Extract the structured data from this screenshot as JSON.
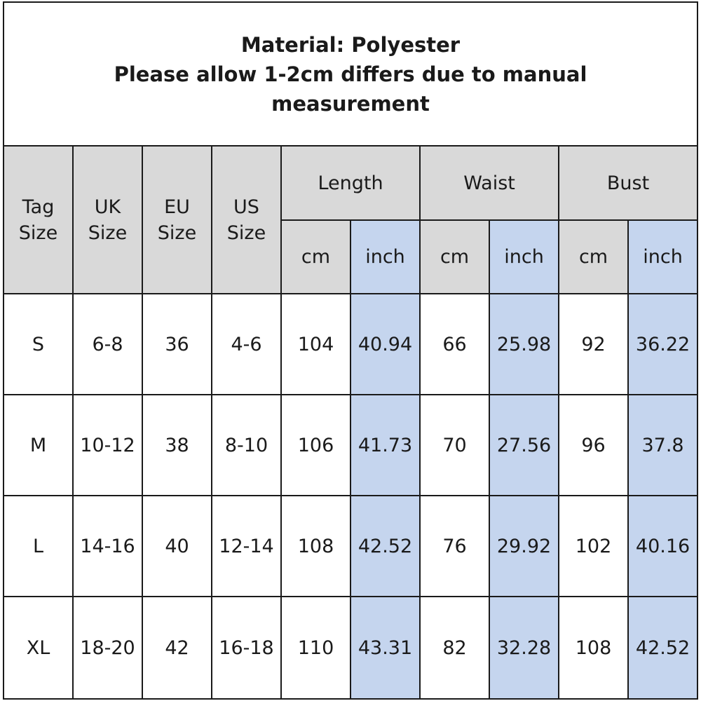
{
  "header": {
    "line1": "Material: Polyester",
    "line2": "Please allow 1-2cm differs due to manual",
    "line3": "measurement"
  },
  "columns": {
    "tag": [
      "Tag",
      "Size"
    ],
    "uk": [
      "UK",
      "Size"
    ],
    "eu": [
      "EU",
      "Size"
    ],
    "us": [
      "US",
      "Size"
    ],
    "length": "Length",
    "waist": "Waist",
    "bust": "Bust",
    "cm": "cm",
    "inch": "inch"
  },
  "rows": [
    {
      "tag": "S",
      "uk": "6-8",
      "eu": "36",
      "us": "4-6",
      "length_cm": "104",
      "length_in": "40.94",
      "waist_cm": "66",
      "waist_in": "25.98",
      "bust_cm": "92",
      "bust_in": "36.22"
    },
    {
      "tag": "M",
      "uk": "10-12",
      "eu": "38",
      "us": "8-10",
      "length_cm": "106",
      "length_in": "41.73",
      "waist_cm": "70",
      "waist_in": "27.56",
      "bust_cm": "96",
      "bust_in": "37.8"
    },
    {
      "tag": "L",
      "uk": "14-16",
      "eu": "40",
      "us": "12-14",
      "length_cm": "108",
      "length_in": "42.52",
      "waist_cm": "76",
      "waist_in": "29.92",
      "bust_cm": "102",
      "bust_in": "40.16"
    },
    {
      "tag": "XL",
      "uk": "18-20",
      "eu": "42",
      "us": "16-18",
      "length_cm": "110",
      "length_in": "43.31",
      "waist_cm": "82",
      "waist_in": "32.28",
      "bust_cm": "108",
      "bust_in": "42.52"
    }
  ],
  "colors": {
    "header_bg": "#d9d9d9",
    "inch_bg": "#c5d5ee",
    "border": "#1a1a1a"
  }
}
